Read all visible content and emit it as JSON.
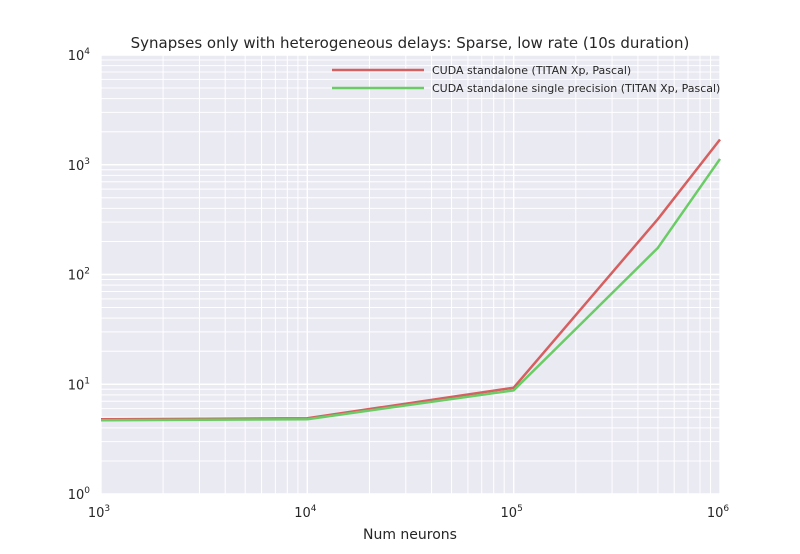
{
  "chart_data": {
    "type": "line",
    "title": "Synapses only with heterogeneous delays: Sparse, low rate (10s duration)",
    "xlabel": "Num neurons",
    "ylabel": "",
    "xscale": "log",
    "yscale": "log",
    "xlim": [
      1000,
      1000000
    ],
    "ylim": [
      1,
      10000
    ],
    "grid": true,
    "legend_position": "top-right",
    "xticks": [
      {
        "value": 1000,
        "base": "10",
        "exp": "3"
      },
      {
        "value": 10000,
        "base": "10",
        "exp": "4"
      },
      {
        "value": 100000,
        "base": "10",
        "exp": "5"
      },
      {
        "value": 1000000,
        "base": "10",
        "exp": "6"
      }
    ],
    "yticks": [
      {
        "value": 1,
        "base": "10",
        "exp": "0"
      },
      {
        "value": 10,
        "base": "10",
        "exp": "1"
      },
      {
        "value": 100,
        "base": "10",
        "exp": "2"
      },
      {
        "value": 1000,
        "base": "10",
        "exp": "3"
      },
      {
        "value": 10000,
        "base": "10",
        "exp": "4"
      }
    ],
    "series": [
      {
        "name": "CUDA standalone (TITAN Xp, Pascal)",
        "color": "#d65f5f",
        "x": [
          1000,
          10000,
          100000,
          500000,
          1000000
        ],
        "y": [
          4.8,
          4.9,
          9.3,
          320,
          1700
        ]
      },
      {
        "name": "CUDA standalone single precision (TITAN Xp, Pascal)",
        "color": "#6acc65",
        "x": [
          1000,
          10000,
          100000,
          500000,
          1000000
        ],
        "y": [
          4.7,
          4.8,
          8.8,
          175,
          1130
        ]
      }
    ]
  }
}
